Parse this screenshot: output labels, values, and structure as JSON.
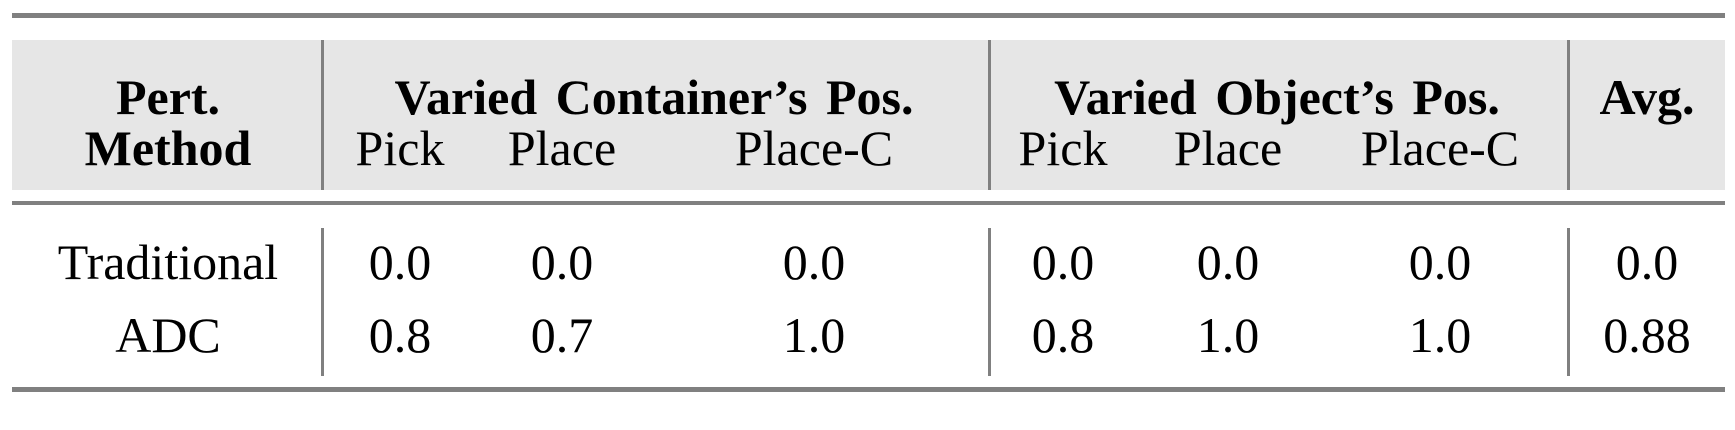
{
  "header": {
    "method_line1": "Pert.",
    "method_line2": "Method",
    "group_container": "Varied Container’s Pos.",
    "group_object": "Varied Object’s Pos.",
    "avg": "Avg.",
    "sub": [
      "Pick",
      "Place",
      "Place-C",
      "Pick",
      "Place",
      "Place-C"
    ]
  },
  "rows": [
    {
      "method": "Traditional",
      "values": [
        "0.0",
        "0.0",
        "0.0",
        "0.0",
        "0.0",
        "0.0",
        "0.0"
      ]
    },
    {
      "method": "ADC",
      "values": [
        "0.8",
        "0.7",
        "1.0",
        "0.8",
        "1.0",
        "1.0",
        "0.88"
      ]
    }
  ],
  "colors": {
    "header_bg": "#e6e6e6",
    "rule": "#808080"
  }
}
